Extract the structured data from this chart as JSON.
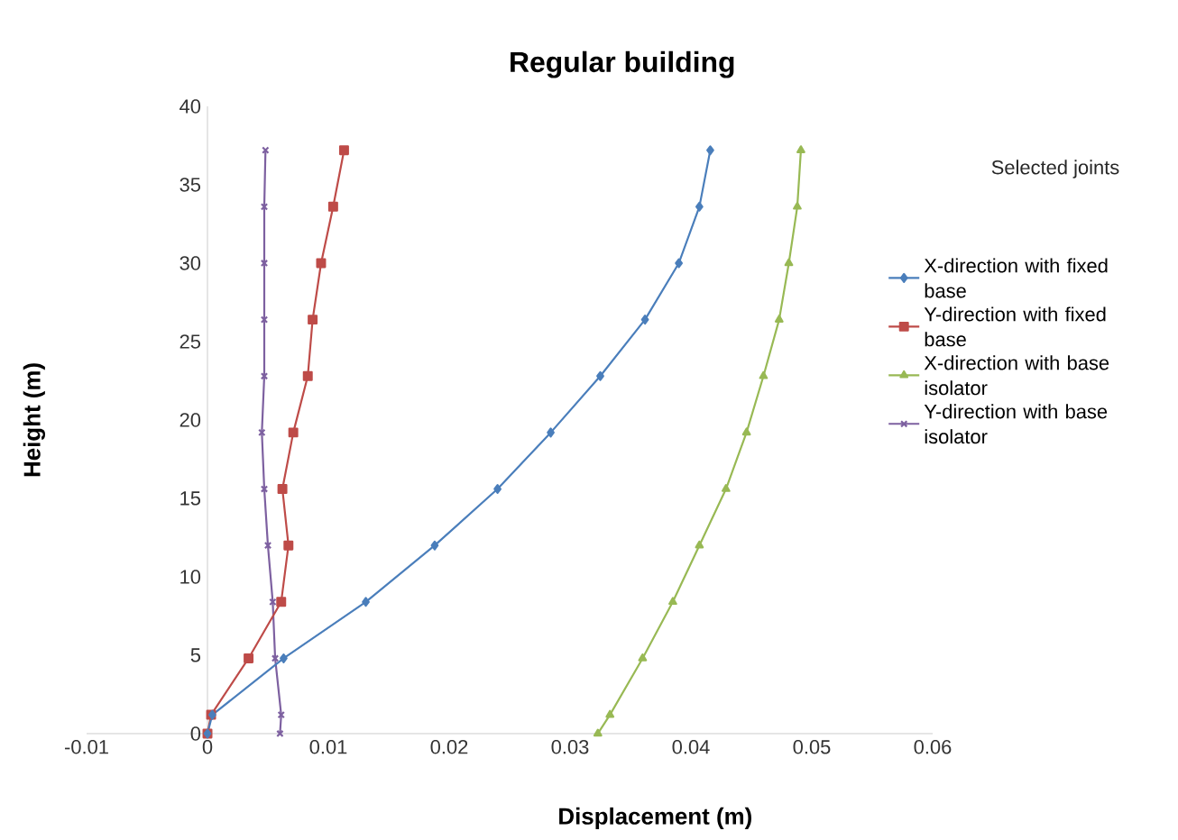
{
  "chart_data": {
    "type": "line",
    "title": "Regular building",
    "xlabel": "Displacement (m)",
    "ylabel": "Height (m)",
    "annotations": [
      "Selected joints"
    ],
    "xlim": [
      -0.01,
      0.06
    ],
    "xticks": [
      -0.01,
      0,
      0.01,
      0.02,
      0.03,
      0.04,
      0.05,
      0.06
    ],
    "ylim": [
      0,
      40
    ],
    "yticks": [
      0,
      5,
      10,
      15,
      20,
      25,
      30,
      35,
      40
    ],
    "grid": false,
    "legend": "right",
    "series": [
      {
        "name": "X-direction with fixed base",
        "color": "#4a7ebb",
        "marker": "diamond",
        "x": [
          0,
          0.0004,
          0.0063,
          0.0131,
          0.0188,
          0.024,
          0.0284,
          0.0325,
          0.0362,
          0.039,
          0.0407,
          0.0416
        ],
        "values": [
          0,
          1.2,
          4.8,
          8.4,
          12,
          15.6,
          19.2,
          22.8,
          26.4,
          30,
          33.6,
          37.2
        ]
      },
      {
        "name": "Y-direction with fixed base",
        "color": "#be4b48",
        "marker": "square",
        "x": [
          0,
          0.0003,
          0.0034,
          0.0061,
          0.0067,
          0.0062,
          0.0071,
          0.0083,
          0.0087,
          0.0094,
          0.0104,
          0.0113
        ],
        "values": [
          0,
          1.2,
          4.8,
          8.4,
          12,
          15.6,
          19.2,
          22.8,
          26.4,
          30,
          33.6,
          37.2
        ]
      },
      {
        "name": "X-direction with base isolator",
        "color": "#98b954",
        "marker": "triangle",
        "x": [
          0.0323,
          0.0333,
          0.036,
          0.0385,
          0.0407,
          0.0429,
          0.0446,
          0.046,
          0.0473,
          0.0481,
          0.0488,
          0.0491
        ],
        "values": [
          0,
          1.2,
          4.8,
          8.4,
          12,
          15.6,
          19.2,
          22.8,
          26.4,
          30,
          33.6,
          37.2
        ]
      },
      {
        "name": "Y-direction with base isolator",
        "color": "#7d60a0",
        "marker": "cross",
        "x": [
          0.006,
          0.0061,
          0.0056,
          0.0054,
          0.005,
          0.0047,
          0.0045,
          0.0047,
          0.0047,
          0.0047,
          0.0047,
          0.0048
        ],
        "values": [
          0,
          1.2,
          4.8,
          8.4,
          12,
          15.6,
          19.2,
          22.8,
          26.4,
          30,
          33.6,
          37.2
        ]
      }
    ]
  }
}
